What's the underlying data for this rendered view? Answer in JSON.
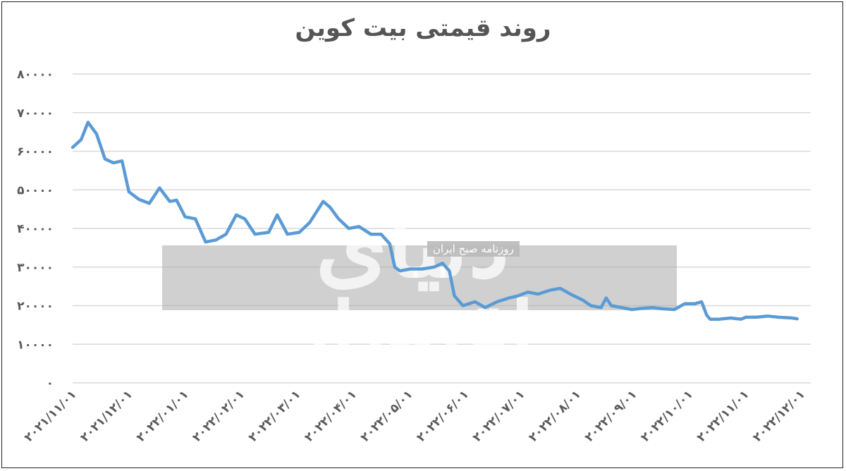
{
  "chart_data": {
    "type": "line",
    "title": "روند قیمتی بیت کوین",
    "xlabel": "",
    "ylabel": "",
    "ylim": [
      0,
      80000
    ],
    "y_ticks": [
      "۰",
      "۱۰۰۰۰",
      "۲۰۰۰۰",
      "۳۰۰۰۰",
      "۴۰۰۰۰",
      "۵۰۰۰۰",
      "۶۰۰۰۰",
      "۷۰۰۰۰",
      "۸۰۰۰۰"
    ],
    "x_ticks": [
      "۲۰۲۱/۱۱/۰۱",
      "۲۰۲۱/۱۲/۰۱",
      "۲۰۲۲/۰۱/۰۱",
      "۲۰۲۲/۰۲/۰۱",
      "۲۰۲۲/۰۳/۰۱",
      "۲۰۲۲/۰۴/۰۱",
      "۲۰۲۲/۰۵/۰۱",
      "۲۰۲۲/۰۶/۰۱",
      "۲۰۲۲/۰۷/۰۱",
      "۲۰۲۲/۰۸/۰۱",
      "۲۰۲۲/۰۹/۰۱",
      "۲۰۲۲/۱۰/۰۱",
      "۲۰۲۲/۱۱/۰۱",
      "۲۰۲۲/۱۲/۰۱"
    ],
    "grid": true,
    "legend": "none",
    "line_color": "#5b9bd5",
    "series": [
      {
        "x": [
          "2021-11-01",
          "2021-11-06",
          "2021-11-10",
          "2021-11-15",
          "2021-11-20",
          "2021-11-25",
          "2021-11-30",
          "2021-12-04",
          "2021-12-10",
          "2021-12-16",
          "2021-12-22",
          "2021-12-28",
          "2022-01-01",
          "2022-01-06",
          "2022-01-12",
          "2022-01-18",
          "2022-01-24",
          "2022-01-30",
          "2022-02-05",
          "2022-02-10",
          "2022-02-16",
          "2022-02-24",
          "2022-03-01",
          "2022-03-07",
          "2022-03-14",
          "2022-03-20",
          "2022-03-28",
          "2022-04-01",
          "2022-04-06",
          "2022-04-12",
          "2022-04-18",
          "2022-04-25",
          "2022-05-01",
          "2022-05-06",
          "2022-05-09",
          "2022-05-12",
          "2022-05-18",
          "2022-05-25",
          "2022-06-01",
          "2022-06-06",
          "2022-06-10",
          "2022-06-13",
          "2022-06-18",
          "2022-06-25",
          "2022-07-01",
          "2022-07-08",
          "2022-07-15",
          "2022-07-20",
          "2022-07-26",
          "2022-08-01",
          "2022-08-08",
          "2022-08-14",
          "2022-08-20",
          "2022-08-27",
          "2022-09-01",
          "2022-09-07",
          "2022-09-10",
          "2022-09-13",
          "2022-09-19",
          "2022-09-25",
          "2022-10-01",
          "2022-10-07",
          "2022-10-13",
          "2022-10-20",
          "2022-10-26",
          "2022-11-01",
          "2022-11-05",
          "2022-11-08",
          "2022-11-10",
          "2022-11-15",
          "2022-11-22",
          "2022-11-28",
          "2022-12-01",
          "2022-12-07",
          "2022-12-14",
          "2022-12-20",
          "2022-12-28",
          "2022-12-31"
        ],
        "values": [
          61000,
          63000,
          67500,
          64500,
          58000,
          57000,
          57500,
          49500,
          47500,
          46500,
          50500,
          47000,
          47300,
          43000,
          42500,
          36500,
          37000,
          38500,
          43500,
          42500,
          38500,
          39000,
          43500,
          38500,
          39000,
          41500,
          47000,
          45500,
          42500,
          40000,
          40500,
          38500,
          38500,
          36000,
          30000,
          29000,
          29500,
          29500,
          30000,
          31000,
          29000,
          22500,
          20000,
          21000,
          19500,
          21000,
          22000,
          22500,
          23500,
          23000,
          24000,
          24500,
          23000,
          21500,
          20000,
          19500,
          22000,
          20000,
          19500,
          19000,
          19300,
          19500,
          19200,
          19000,
          20500,
          20500,
          21000,
          17500,
          16500,
          16500,
          16800,
          16500,
          17000,
          17000,
          17300,
          17000,
          16800,
          16600
        ]
      }
    ]
  },
  "watermark": {
    "logo_text": "دنیای اقتصاد",
    "tagline": "روزنامه صبح ایران"
  }
}
